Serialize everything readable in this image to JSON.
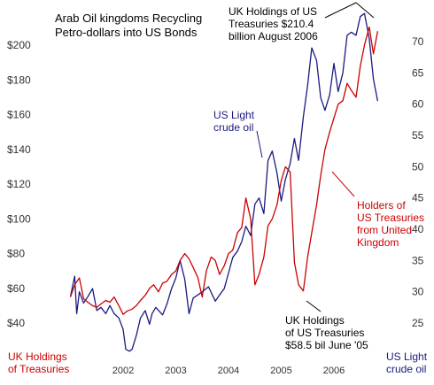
{
  "chart_data": {
    "type": "line",
    "title": "Arab Oil kingdoms Recycling\nPetro-dollars into US Bonds",
    "left_axis": {
      "label": "UK Holdings\nof Treasuries",
      "min": 30,
      "max": 220,
      "ticks": [
        40,
        60,
        80,
        100,
        120,
        140,
        160,
        180,
        200
      ],
      "tick_labels": [
        "$40",
        "$60",
        "$80",
        "$100",
        "$120",
        "$140",
        "$160",
        "$180",
        "$200"
      ]
    },
    "right_axis": {
      "label": "US Light\ncrude oil",
      "min": 20,
      "max": 75,
      "ticks": [
        25,
        30,
        35,
        40,
        45,
        50,
        55,
        60,
        65,
        70
      ],
      "tick_labels": [
        "25",
        "30",
        "35",
        "40",
        "45",
        "50",
        "55",
        "60",
        "65",
        "70"
      ]
    },
    "x_axis": {
      "min": 2001.0,
      "max": 2007.5,
      "ticks": [
        2002,
        2003,
        2004,
        2005,
        2006
      ],
      "tick_labels": [
        "2002",
        "2003",
        "2004",
        "2005",
        "2006"
      ]
    },
    "series": [
      {
        "name": "US Light crude oil",
        "axis": "right",
        "color": "#1a1a80",
        "points": [
          [
            2001.0,
            29.2
          ],
          [
            2001.08,
            32.5
          ],
          [
            2001.12,
            26.5
          ],
          [
            2001.17,
            30.0
          ],
          [
            2001.25,
            28.2
          ],
          [
            2001.33,
            29.2
          ],
          [
            2001.42,
            30.5
          ],
          [
            2001.5,
            27.0
          ],
          [
            2001.58,
            27.5
          ],
          [
            2001.67,
            26.5
          ],
          [
            2001.75,
            27.8
          ],
          [
            2001.83,
            26.5
          ],
          [
            2001.92,
            25.8
          ],
          [
            2002.0,
            24.0
          ],
          [
            2002.05,
            20.8
          ],
          [
            2002.12,
            20.5
          ],
          [
            2002.17,
            20.8
          ],
          [
            2002.25,
            23.0
          ],
          [
            2002.33,
            25.8
          ],
          [
            2002.42,
            27.0
          ],
          [
            2002.5,
            24.8
          ],
          [
            2002.55,
            26.5
          ],
          [
            2002.62,
            27.5
          ],
          [
            2002.75,
            26.3
          ],
          [
            2002.83,
            28.0
          ],
          [
            2002.92,
            30.5
          ],
          [
            2003.0,
            32.2
          ],
          [
            2003.08,
            35.0
          ],
          [
            2003.17,
            32.0
          ],
          [
            2003.25,
            26.5
          ],
          [
            2003.33,
            29.0
          ],
          [
            2003.42,
            29.5
          ],
          [
            2003.5,
            30.0
          ],
          [
            2003.62,
            30.8
          ],
          [
            2003.75,
            28.5
          ],
          [
            2003.83,
            29.5
          ],
          [
            2003.92,
            30.5
          ],
          [
            2004.0,
            33.0
          ],
          [
            2004.08,
            35.5
          ],
          [
            2004.17,
            36.5
          ],
          [
            2004.25,
            38.0
          ],
          [
            2004.33,
            40.5
          ],
          [
            2004.42,
            39.0
          ],
          [
            2004.5,
            44.0
          ],
          [
            2004.58,
            45.0
          ],
          [
            2004.67,
            42.5
          ],
          [
            2004.75,
            51.0
          ],
          [
            2004.83,
            52.5
          ],
          [
            2004.92,
            49.0
          ],
          [
            2005.0,
            44.5
          ],
          [
            2005.08,
            48.0
          ],
          [
            2005.17,
            50.5
          ],
          [
            2005.25,
            54.5
          ],
          [
            2005.33,
            51.0
          ],
          [
            2005.42,
            58.0
          ],
          [
            2005.5,
            63.0
          ],
          [
            2005.58,
            69.0
          ],
          [
            2005.67,
            67.0
          ],
          [
            2005.75,
            61.0
          ],
          [
            2005.83,
            59.0
          ],
          [
            2005.92,
            61.5
          ],
          [
            2006.0,
            66.5
          ],
          [
            2006.08,
            62.0
          ],
          [
            2006.17,
            65.0
          ],
          [
            2006.25,
            71.0
          ],
          [
            2006.33,
            71.5
          ],
          [
            2006.42,
            71.0
          ],
          [
            2006.5,
            74.0
          ],
          [
            2006.58,
            74.5
          ],
          [
            2006.67,
            70.5
          ],
          [
            2006.75,
            64.0
          ],
          [
            2006.83,
            60.5
          ]
        ]
      },
      {
        "name": "Holders of US Treasuries from United Kingdom",
        "axis": "left",
        "color": "#cc0000",
        "points": [
          [
            2001.0,
            55
          ],
          [
            2001.08,
            62
          ],
          [
            2001.17,
            66
          ],
          [
            2001.25,
            54
          ],
          [
            2001.33,
            52
          ],
          [
            2001.42,
            50
          ],
          [
            2001.5,
            49
          ],
          [
            2001.58,
            51
          ],
          [
            2001.67,
            53
          ],
          [
            2001.75,
            52
          ],
          [
            2001.83,
            55
          ],
          [
            2001.92,
            50
          ],
          [
            2002.0,
            45
          ],
          [
            2002.08,
            47
          ],
          [
            2002.17,
            48
          ],
          [
            2002.25,
            50
          ],
          [
            2002.33,
            53
          ],
          [
            2002.42,
            56
          ],
          [
            2002.5,
            60
          ],
          [
            2002.58,
            62
          ],
          [
            2002.67,
            58
          ],
          [
            2002.75,
            63
          ],
          [
            2002.83,
            64
          ],
          [
            2002.92,
            68
          ],
          [
            2003.0,
            70
          ],
          [
            2003.08,
            76
          ],
          [
            2003.17,
            80
          ],
          [
            2003.25,
            77
          ],
          [
            2003.33,
            72
          ],
          [
            2003.42,
            66
          ],
          [
            2003.5,
            55
          ],
          [
            2003.58,
            70
          ],
          [
            2003.67,
            78
          ],
          [
            2003.75,
            76
          ],
          [
            2003.83,
            68
          ],
          [
            2003.92,
            73
          ],
          [
            2004.0,
            80
          ],
          [
            2004.08,
            82
          ],
          [
            2004.17,
            92
          ],
          [
            2004.25,
            95
          ],
          [
            2004.33,
            112
          ],
          [
            2004.42,
            100
          ],
          [
            2004.5,
            62
          ],
          [
            2004.58,
            68
          ],
          [
            2004.67,
            78
          ],
          [
            2004.75,
            96
          ],
          [
            2004.83,
            100
          ],
          [
            2004.92,
            108
          ],
          [
            2005.0,
            122
          ],
          [
            2005.08,
            130
          ],
          [
            2005.17,
            127
          ],
          [
            2005.25,
            75
          ],
          [
            2005.33,
            62
          ],
          [
            2005.42,
            58.5
          ],
          [
            2005.5,
            78
          ],
          [
            2005.58,
            92
          ],
          [
            2005.67,
            108
          ],
          [
            2005.75,
            125
          ],
          [
            2005.83,
            140
          ],
          [
            2005.92,
            150
          ],
          [
            2006.0,
            158
          ],
          [
            2006.08,
            166
          ],
          [
            2006.17,
            168
          ],
          [
            2006.25,
            178
          ],
          [
            2006.33,
            174
          ],
          [
            2006.42,
            170
          ],
          [
            2006.5,
            188
          ],
          [
            2006.58,
            200
          ],
          [
            2006.67,
            210.4
          ],
          [
            2006.75,
            195
          ],
          [
            2006.83,
            208
          ]
        ]
      }
    ],
    "annotations": [
      {
        "text": "UK Holdings of US\nTreasuries $210.4\nbillion August 2006",
        "color": "#000000"
      },
      {
        "text": "US Light\ncrude oil",
        "color": "#1a1a80"
      },
      {
        "text": "Holders of\nUS Treasuries\nfrom United\nKingdom",
        "color": "#cc0000"
      },
      {
        "text": "UK Holdings\nof US Treasuries\n$58.5 bil June '05",
        "color": "#000000"
      }
    ],
    "colors": {
      "axis_left_label": "#cc0000",
      "axis_right_label": "#1a1a80",
      "tick_text": "#333333"
    }
  }
}
